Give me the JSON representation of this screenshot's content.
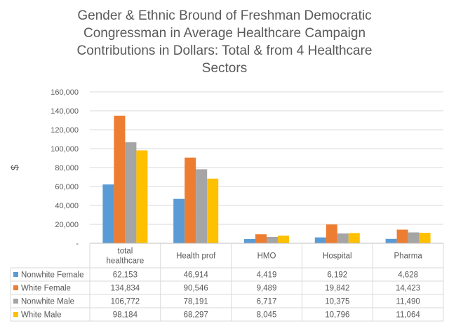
{
  "chart_data": {
    "type": "bar",
    "title_lines": [
      "Gender & Ethnic Bround of Freshman Democratic",
      "Congressman in Average Healthcare Campaign",
      "Contributions in Dollars: Total & from 4 Healthcare",
      "Sectors"
    ],
    "xlabel": "",
    "ylabel": "$",
    "ylim": [
      0,
      160000
    ],
    "yticks": [
      0,
      20000,
      40000,
      60000,
      80000,
      100000,
      120000,
      140000,
      160000
    ],
    "ytick_labels": [
      "-",
      "20,000",
      "40,000",
      "60,000",
      "80,000",
      "100,000",
      "120,000",
      "140,000",
      "160,000"
    ],
    "category_lines": [
      [
        "total",
        "healthcare"
      ],
      [
        "Health prof"
      ],
      [
        "HMO"
      ],
      [
        "Hospital"
      ],
      [
        "Pharma"
      ]
    ],
    "series": [
      {
        "name": "Nonwhite Female",
        "color": "#5B9BD5",
        "values": [
          62153,
          46914,
          4419,
          6192,
          4628
        ],
        "labels": [
          "62,153",
          "46,914",
          "4,419",
          "6,192",
          "4,628"
        ]
      },
      {
        "name": "White Female",
        "color": "#ED7D31",
        "values": [
          134834,
          90546,
          9489,
          19842,
          14423
        ],
        "labels": [
          "134,834",
          "90,546",
          "9,489",
          "19,842",
          "14,423"
        ]
      },
      {
        "name": "Nonwhite Male",
        "color": "#A5A5A5",
        "values": [
          106772,
          78191,
          6717,
          10375,
          11490
        ],
        "labels": [
          "106,772",
          "78,191",
          "6,717",
          "10,375",
          "11,490"
        ]
      },
      {
        "name": "White Male",
        "color": "#FFC000",
        "values": [
          98184,
          68297,
          8045,
          10796,
          11064
        ],
        "labels": [
          "98,184",
          "68,297",
          "8,045",
          "10,796",
          "11,064"
        ]
      }
    ],
    "gridlines": true,
    "legend": "data-table"
  }
}
